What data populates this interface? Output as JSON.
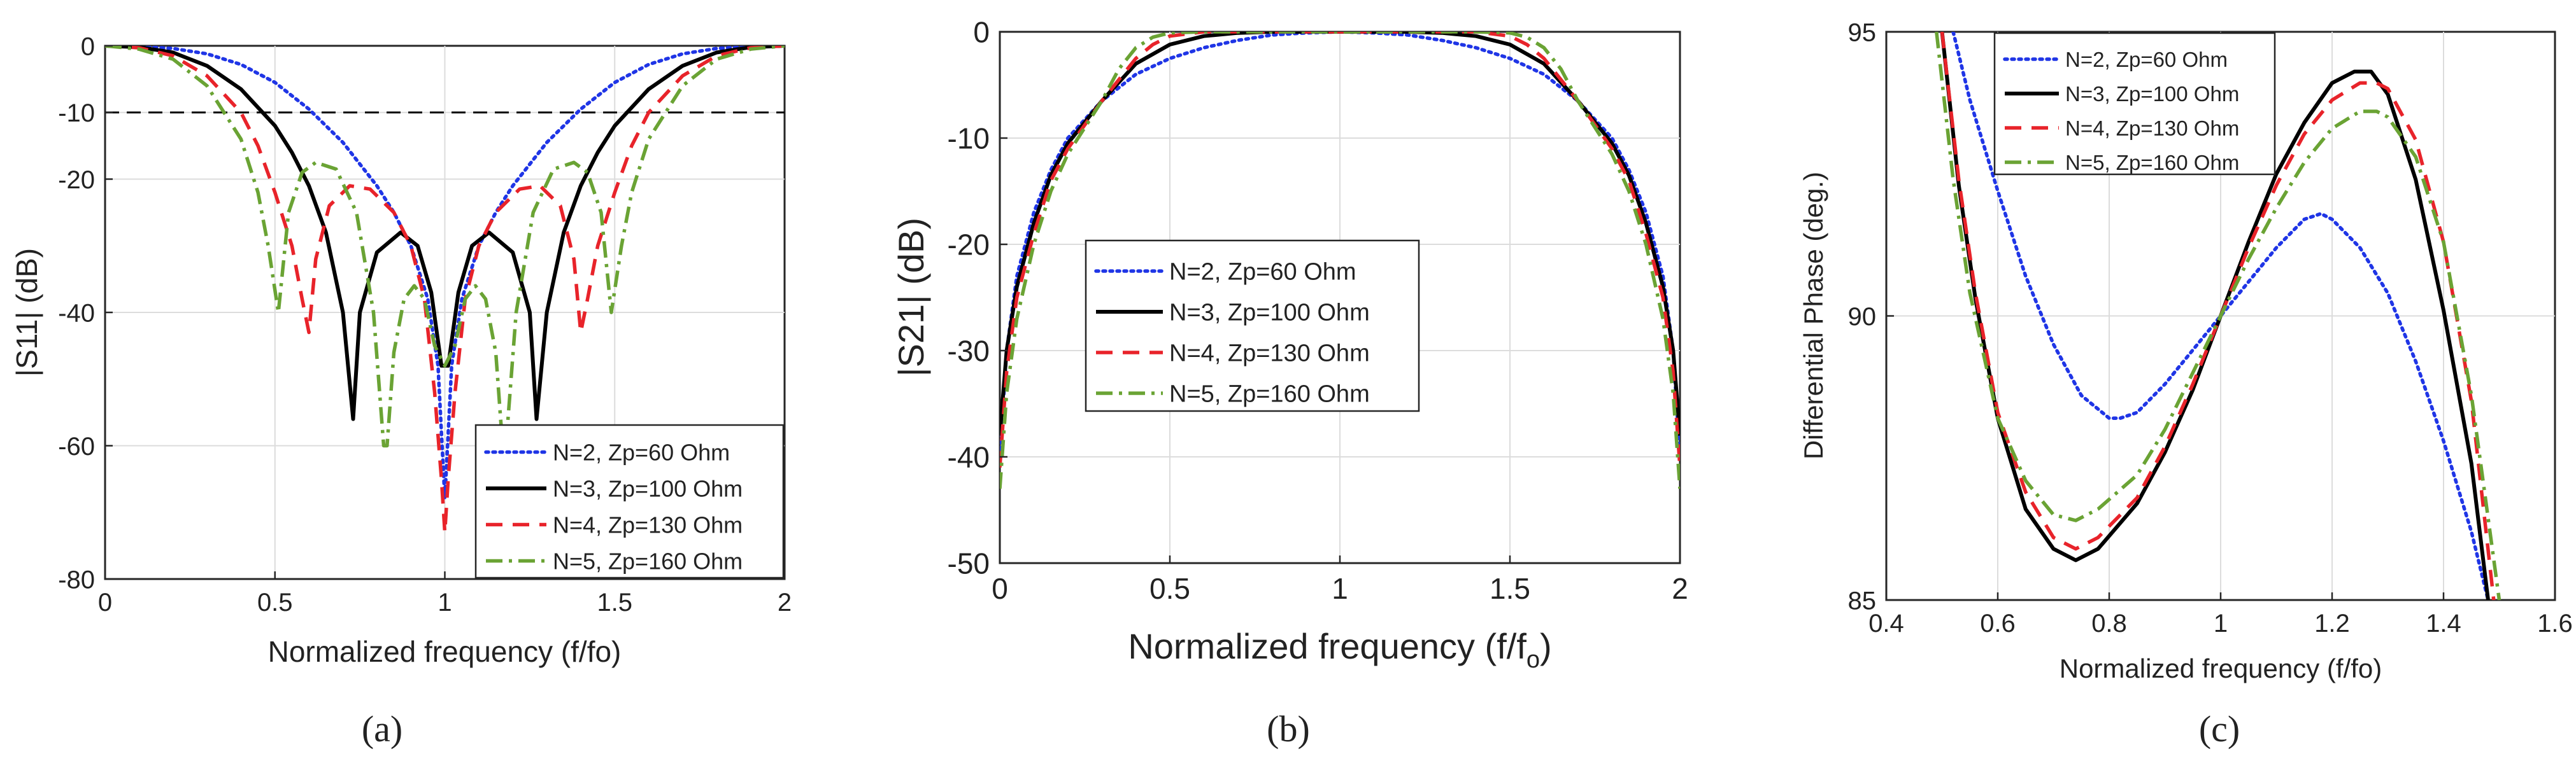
{
  "figure_captions": [
    "(a)",
    "(b)",
    "(c)"
  ],
  "series_colors": {
    "N2": "#1f35e6",
    "N3": "#000000",
    "N4": "#e8232a",
    "N5": "#6aa334"
  },
  "chart_data": [
    {
      "id": "a",
      "type": "line",
      "title": "",
      "caption": "(a)",
      "xlabel": "Normalized frequency (f/fo)",
      "ylabel": "|S11| (dB)",
      "xlim": [
        0,
        2
      ],
      "ylim": [
        -80,
        0
      ],
      "xticks": [
        0,
        0.5,
        1,
        1.5,
        2
      ],
      "xtick_labels": [
        "0",
        "0.5",
        "1",
        "1.5",
        "2"
      ],
      "yticks": [
        -80,
        -60,
        -40,
        -20,
        -10,
        0
      ],
      "ytick_labels": [
        "-80",
        "-60",
        "-40",
        "-20",
        "-10",
        "0"
      ],
      "grid": true,
      "legend_position": "bottom-right",
      "reference_line": {
        "y": -10,
        "style": "dashed",
        "color": "#000000"
      },
      "series": [
        {
          "name": "N=2, Zp=60 Ohm",
          "style": "dotted",
          "color_key": "N2",
          "x": [
            0,
            0.1,
            0.2,
            0.3,
            0.4,
            0.5,
            0.6,
            0.7,
            0.8,
            0.85,
            0.9,
            0.95,
            0.98,
            1.0,
            1.02,
            1.05,
            1.1,
            1.15,
            1.2,
            1.3,
            1.4,
            1.5,
            1.6,
            1.7,
            1.8,
            1.9,
            2.0
          ],
          "y": [
            0,
            -0.1,
            -0.4,
            -1.2,
            -2.8,
            -5.5,
            -9.5,
            -14.5,
            -21,
            -25,
            -30,
            -38,
            -48,
            -68,
            -48,
            -38,
            -30,
            -25,
            -21,
            -14.5,
            -9.5,
            -5.5,
            -2.8,
            -1.2,
            -0.4,
            -0.1,
            0
          ]
        },
        {
          "name": "N=3, Zp=100 Ohm",
          "style": "solid",
          "color_key": "N3",
          "x": [
            0,
            0.1,
            0.2,
            0.3,
            0.4,
            0.5,
            0.55,
            0.6,
            0.65,
            0.7,
            0.73,
            0.75,
            0.8,
            0.87,
            0.92,
            0.96,
            0.99,
            1.0,
            1.01,
            1.04,
            1.08,
            1.13,
            1.2,
            1.25,
            1.27,
            1.3,
            1.35,
            1.4,
            1.45,
            1.5,
            1.6,
            1.7,
            1.8,
            1.9,
            2.0
          ],
          "y": [
            0,
            -0.2,
            -1,
            -3,
            -6.5,
            -12,
            -16,
            -21,
            -28,
            -40,
            -56,
            -40,
            -31,
            -28,
            -30,
            -37,
            -48,
            -48,
            -48,
            -37,
            -30,
            -28,
            -31,
            -40,
            -56,
            -40,
            -28,
            -21,
            -16,
            -12,
            -6.5,
            -3,
            -1,
            -0.2,
            0
          ]
        },
        {
          "name": "N=4, Zp=130 Ohm",
          "style": "dashed",
          "color_key": "N4",
          "x": [
            0,
            0.1,
            0.2,
            0.3,
            0.4,
            0.45,
            0.5,
            0.55,
            0.58,
            0.6,
            0.62,
            0.66,
            0.72,
            0.78,
            0.85,
            0.9,
            0.94,
            0.97,
            0.99,
            1.0,
            1.01,
            1.03,
            1.06,
            1.1,
            1.15,
            1.22,
            1.28,
            1.34,
            1.38,
            1.4,
            1.42,
            1.45,
            1.5,
            1.55,
            1.6,
            1.7,
            1.8,
            1.9,
            2.0
          ],
          "y": [
            0,
            -0.3,
            -1.5,
            -4.5,
            -10,
            -15,
            -22,
            -30,
            -38,
            -43,
            -32,
            -24,
            -21,
            -21.5,
            -25,
            -30,
            -38,
            -52,
            -65,
            -73,
            -65,
            -52,
            -38,
            -30,
            -25,
            -21.5,
            -21,
            -24,
            -32,
            -43,
            -38,
            -30,
            -22,
            -15,
            -10,
            -4.5,
            -1.5,
            -0.3,
            0
          ]
        },
        {
          "name": "N=5, Zp=160 Ohm",
          "style": "dashdot",
          "color_key": "N5",
          "x": [
            0,
            0.1,
            0.2,
            0.3,
            0.4,
            0.45,
            0.48,
            0.51,
            0.54,
            0.58,
            0.62,
            0.68,
            0.74,
            0.79,
            0.82,
            0.83,
            0.85,
            0.88,
            0.91,
            0.94,
            0.97,
            1.0,
            1.03,
            1.06,
            1.09,
            1.12,
            1.15,
            1.17,
            1.18,
            1.21,
            1.26,
            1.32,
            1.38,
            1.42,
            1.46,
            1.49,
            1.52,
            1.55,
            1.6,
            1.7,
            1.8,
            1.9,
            2.0
          ],
          "y": [
            0,
            -0.5,
            -2,
            -6,
            -14,
            -22,
            -30,
            -40,
            -25,
            -19,
            -17.5,
            -18.5,
            -25,
            -40,
            -60,
            -60,
            -46,
            -38,
            -36,
            -38,
            -45,
            -48,
            -45,
            -38,
            -36,
            -38,
            -46,
            -60,
            -60,
            -40,
            -25,
            -18.5,
            -17.5,
            -19,
            -25,
            -40,
            -30,
            -22,
            -14,
            -6,
            -2,
            -0.5,
            0
          ]
        }
      ]
    },
    {
      "id": "b",
      "type": "line",
      "title": "",
      "caption": "(b)",
      "xlabel": "Normalized frequency (f/f",
      "xlabel_sub": "o",
      "xlabel_close": ")",
      "ylabel": "|S21| (dB)",
      "xlim": [
        0,
        2
      ],
      "ylim": [
        -50,
        0
      ],
      "xticks": [
        0,
        0.5,
        1,
        1.5,
        2
      ],
      "xtick_labels": [
        "0",
        "0.5",
        "1",
        "1.5",
        "2"
      ],
      "yticks": [
        -50,
        -40,
        -30,
        -20,
        -10,
        0
      ],
      "ytick_labels": [
        "-50",
        "-40",
        "-30",
        "-20",
        "-10",
        "0"
      ],
      "grid": true,
      "legend_position": "center-left",
      "series": [
        {
          "name": "N=2, Zp=60 Ohm",
          "style": "dotted",
          "color_key": "N2",
          "x": [
            0,
            0.02,
            0.05,
            0.1,
            0.15,
            0.2,
            0.3,
            0.4,
            0.5,
            0.6,
            0.7,
            0.8,
            0.9,
            1.0,
            1.1,
            1.2,
            1.3,
            1.4,
            1.5,
            1.6,
            1.7,
            1.8,
            1.85,
            1.9,
            1.95,
            1.98,
            2.0
          ],
          "y": [
            -40,
            -30,
            -23,
            -17,
            -13,
            -10,
            -6.5,
            -4,
            -2.5,
            -1.5,
            -0.8,
            -0.3,
            -0.1,
            0,
            -0.1,
            -0.3,
            -0.8,
            -1.5,
            -2.5,
            -4,
            -6.5,
            -10,
            -13,
            -17,
            -23,
            -30,
            -40
          ]
        },
        {
          "name": "N=3, Zp=100 Ohm",
          "style": "solid",
          "color_key": "N3",
          "x": [
            0,
            0.02,
            0.05,
            0.1,
            0.15,
            0.2,
            0.3,
            0.4,
            0.5,
            0.6,
            0.7,
            0.8,
            0.9,
            1.0,
            1.1,
            1.2,
            1.3,
            1.4,
            1.5,
            1.6,
            1.7,
            1.8,
            1.85,
            1.9,
            1.95,
            1.98,
            2.0
          ],
          "y": [
            -38,
            -30,
            -24,
            -18,
            -13.5,
            -10.5,
            -6.5,
            -3,
            -1.2,
            -0.4,
            -0.1,
            0,
            0,
            0,
            0,
            0,
            -0.1,
            -0.4,
            -1.2,
            -3,
            -6.5,
            -10.5,
            -13.5,
            -18,
            -24,
            -30,
            -38
          ]
        },
        {
          "name": "N=4, Zp=130 Ohm",
          "style": "dashed",
          "color_key": "N4",
          "x": [
            0,
            0.02,
            0.05,
            0.1,
            0.15,
            0.2,
            0.3,
            0.4,
            0.45,
            0.5,
            0.6,
            0.7,
            0.8,
            1.0,
            1.2,
            1.3,
            1.4,
            1.5,
            1.55,
            1.6,
            1.7,
            1.8,
            1.85,
            1.9,
            1.95,
            1.98,
            2.0
          ],
          "y": [
            -41,
            -32,
            -25,
            -19,
            -14,
            -11,
            -6.5,
            -2.5,
            -1.2,
            -0.4,
            0,
            0,
            0,
            0,
            0,
            0,
            0,
            -0.4,
            -1.2,
            -2.5,
            -6.5,
            -11,
            -14,
            -19,
            -25,
            -32,
            -41
          ]
        },
        {
          "name": "N=5, Zp=160 Ohm",
          "style": "dashdot",
          "color_key": "N5",
          "x": [
            0,
            0.02,
            0.05,
            0.1,
            0.15,
            0.2,
            0.3,
            0.35,
            0.4,
            0.45,
            0.5,
            0.6,
            0.8,
            1.0,
            1.2,
            1.4,
            1.5,
            1.55,
            1.6,
            1.65,
            1.7,
            1.8,
            1.85,
            1.9,
            1.95,
            1.98,
            2.0
          ],
          "y": [
            -43,
            -34,
            -27,
            -20,
            -15,
            -11.5,
            -6.5,
            -3.5,
            -1.5,
            -0.5,
            -0.1,
            0,
            0,
            0,
            0,
            0,
            -0.1,
            -0.5,
            -1.5,
            -3.5,
            -6.5,
            -11.5,
            -15,
            -20,
            -27,
            -34,
            -43
          ]
        }
      ]
    },
    {
      "id": "c",
      "type": "line",
      "title": "",
      "caption": "(c)",
      "xlabel": "Normalized frequency (f/fo)",
      "ylabel": "Differential Phase (deg.)",
      "xlim": [
        0.4,
        1.6
      ],
      "ylim": [
        85,
        95
      ],
      "xticks": [
        0.4,
        0.6,
        0.8,
        1.0,
        1.2,
        1.4,
        1.6
      ],
      "xtick_labels": [
        "0.4",
        "0.6",
        "0.8",
        "1",
        "1.2",
        "1.4",
        "1.6"
      ],
      "yticks": [
        85,
        90,
        95
      ],
      "ytick_labels": [
        "85",
        "90",
        "95"
      ],
      "grid": true,
      "legend_position": "top-left",
      "series": [
        {
          "name": "N=2, Zp=60 Ohm",
          "style": "dotted",
          "color_key": "N2",
          "x": [
            0.52,
            0.55,
            0.6,
            0.65,
            0.7,
            0.75,
            0.8,
            0.82,
            0.85,
            0.9,
            0.95,
            1.0,
            1.05,
            1.1,
            1.15,
            1.18,
            1.2,
            1.25,
            1.3,
            1.35,
            1.4,
            1.45,
            1.48
          ],
          "y": [
            95,
            93.8,
            92.2,
            90.7,
            89.5,
            88.6,
            88.2,
            88.2,
            88.3,
            88.8,
            89.4,
            90,
            90.6,
            91.2,
            91.7,
            91.8,
            91.7,
            91.2,
            90.4,
            89.2,
            87.8,
            86.2,
            85
          ]
        },
        {
          "name": "N=3, Zp=100 Ohm",
          "style": "solid",
          "color_key": "N3",
          "x": [
            0.5,
            0.53,
            0.56,
            0.6,
            0.65,
            0.7,
            0.74,
            0.78,
            0.85,
            0.9,
            0.95,
            1.0,
            1.05,
            1.1,
            1.15,
            1.2,
            1.24,
            1.27,
            1.3,
            1.35,
            1.4,
            1.45,
            1.48
          ],
          "y": [
            95,
            92.3,
            90.3,
            88.2,
            86.6,
            85.9,
            85.7,
            85.9,
            86.7,
            87.6,
            88.7,
            90,
            91.3,
            92.5,
            93.4,
            94.1,
            94.3,
            94.3,
            93.9,
            92.4,
            90.1,
            87.4,
            85
          ]
        },
        {
          "name": "N=4, Zp=130 Ohm",
          "style": "dashed",
          "color_key": "N4",
          "x": [
            0.5,
            0.53,
            0.56,
            0.6,
            0.65,
            0.7,
            0.74,
            0.78,
            0.85,
            0.9,
            0.95,
            1.0,
            1.05,
            1.1,
            1.15,
            1.2,
            1.25,
            1.28,
            1.3,
            1.35,
            1.4,
            1.45,
            1.49
          ],
          "y": [
            95,
            92.4,
            90.4,
            88.3,
            86.9,
            86.1,
            85.9,
            86.1,
            86.8,
            87.7,
            88.8,
            90,
            91.2,
            92.3,
            93.2,
            93.8,
            94.1,
            94.1,
            94,
            93.1,
            91.3,
            88.5,
            85
          ]
        },
        {
          "name": "N=5, Zp=160 Ohm",
          "style": "dashdot",
          "color_key": "N5",
          "x": [
            0.49,
            0.52,
            0.55,
            0.6,
            0.65,
            0.7,
            0.74,
            0.78,
            0.85,
            0.9,
            0.95,
            1.0,
            1.05,
            1.1,
            1.15,
            1.2,
            1.25,
            1.28,
            1.3,
            1.35,
            1.4,
            1.45,
            1.5
          ],
          "y": [
            95,
            92.4,
            90.4,
            88.2,
            87.1,
            86.5,
            86.4,
            86.6,
            87.2,
            88,
            89,
            90,
            91,
            91.9,
            92.7,
            93.3,
            93.6,
            93.6,
            93.5,
            92.8,
            91.3,
            88.6,
            85
          ]
        }
      ]
    }
  ]
}
